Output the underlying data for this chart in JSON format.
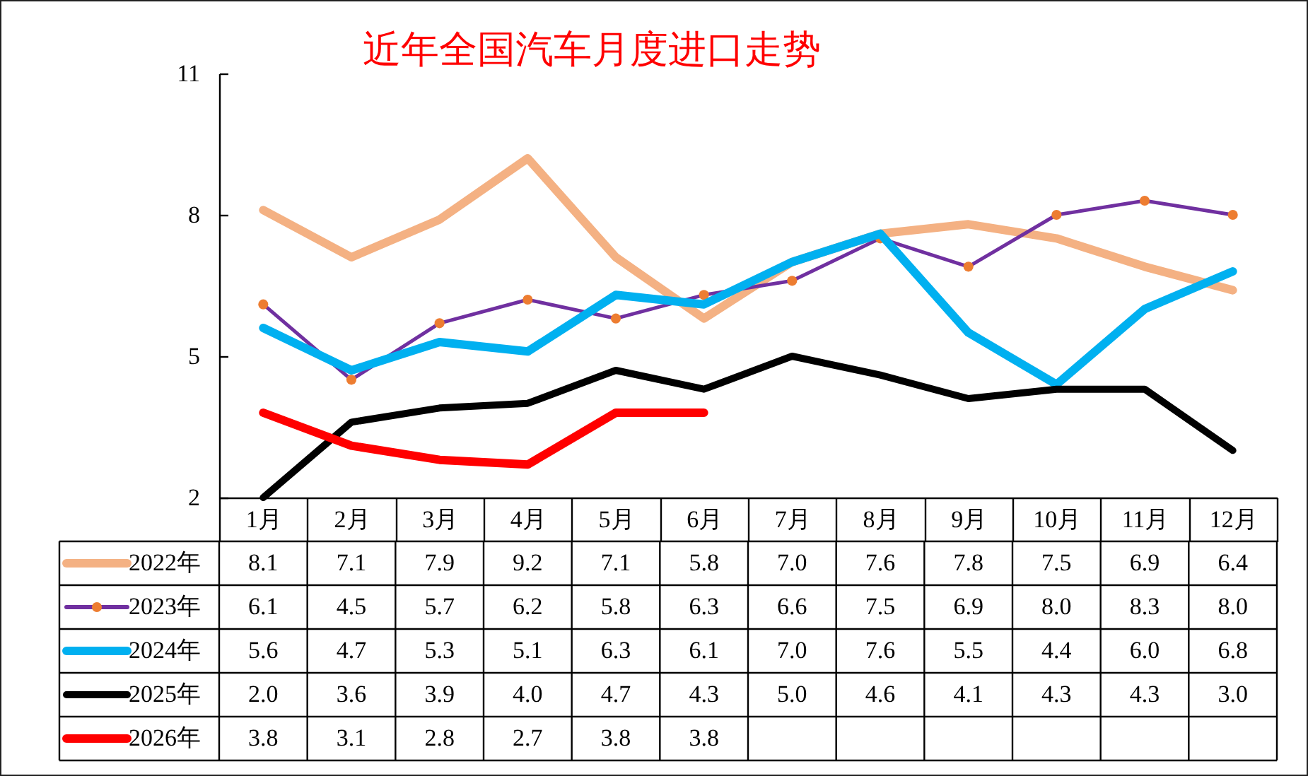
{
  "chart_data": {
    "type": "line",
    "title": "近年全国汽车月度进口走势",
    "categories": [
      "1月",
      "2月",
      "3月",
      "4月",
      "5月",
      "6月",
      "7月",
      "8月",
      "9月",
      "10月",
      "11月",
      "12月"
    ],
    "series": [
      {
        "name": "2022年",
        "color": "#f4b183",
        "values": [
          8.1,
          7.1,
          7.9,
          9.2,
          7.1,
          5.8,
          7.0,
          7.6,
          7.8,
          7.5,
          6.9,
          6.4
        ],
        "value_labels": [
          "8.1",
          "7.1",
          "7.9",
          "9.2",
          "7.1",
          "5.8",
          "7.0",
          "7.6",
          "7.8",
          "7.5",
          "6.9",
          "6.4"
        ]
      },
      {
        "name": "2023年",
        "color": "#7030a0",
        "values": [
          6.1,
          4.5,
          5.7,
          6.2,
          5.8,
          6.3,
          6.6,
          7.5,
          6.9,
          8.0,
          8.3,
          8.0
        ],
        "value_labels": [
          "6.1",
          "4.5",
          "5.7",
          "6.2",
          "5.8",
          "6.3",
          "6.6",
          "7.5",
          "6.9",
          "8.0",
          "8.3",
          "8.0"
        ]
      },
      {
        "type": "scatter",
        "marker": "circle",
        "color": "#ed7d31",
        "values": [
          6.1,
          4.5,
          5.7,
          6.2,
          5.8,
          6.3,
          6.6,
          7.5,
          6.9,
          8.0,
          8.3,
          8.0
        ]
      },
      {
        "name": "2024年",
        "color": "#00b0f0",
        "values": [
          5.6,
          4.7,
          5.3,
          5.1,
          6.3,
          6.1,
          7.0,
          7.6,
          5.5,
          4.4,
          6.0,
          6.8
        ],
        "value_labels": [
          "5.6",
          "4.7",
          "5.3",
          "5.1",
          "6.3",
          "6.1",
          "7.0",
          "7.6",
          "5.5",
          "4.4",
          "6.0",
          "6.8"
        ]
      },
      {
        "name": "2025年",
        "color": "#000000",
        "values": [
          2.0,
          3.6,
          3.9,
          4.0,
          4.7,
          4.3,
          5.0,
          4.6,
          4.1,
          4.3,
          4.3,
          3.0
        ],
        "value_labels": [
          "2.0",
          "3.6",
          "3.9",
          "4.0",
          "4.7",
          "4.3",
          "5.0",
          "4.6",
          "4.1",
          "4.3",
          "4.3",
          "3.0"
        ]
      },
      {
        "name": "2026年",
        "color": "#ff0000",
        "values": [
          3.8,
          3.1,
          2.8,
          2.7,
          3.8,
          3.8,
          null,
          null,
          null,
          null,
          null,
          null
        ],
        "value_labels": [
          "3.8",
          "3.1",
          "2.8",
          "2.7",
          "3.8",
          "3.8",
          null,
          null,
          null,
          null,
          null,
          null
        ]
      }
    ],
    "ylim": [
      2,
      11
    ],
    "yticks": [
      2,
      5,
      8,
      11
    ],
    "legend": "bottom"
  }
}
